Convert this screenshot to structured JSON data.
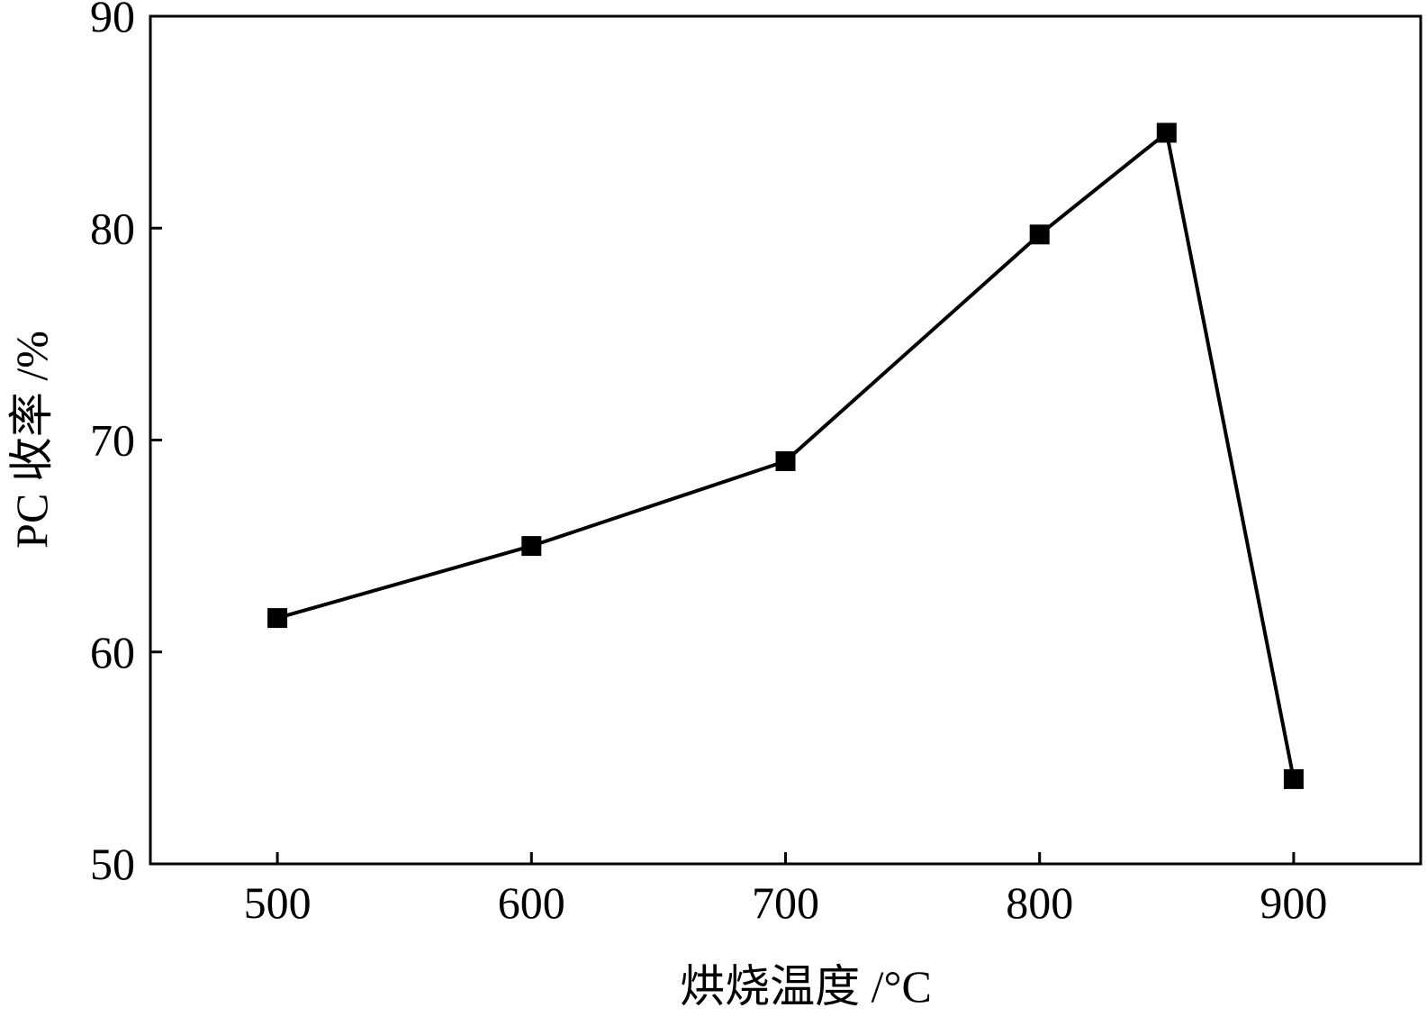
{
  "chart_data": {
    "type": "line",
    "title": "",
    "xlabel": "烘烧温度 /°C",
    "ylabel": "PC 收率 /%",
    "x": [
      500,
      600,
      700,
      800,
      850,
      900
    ],
    "series": [
      {
        "values": [
          61.6,
          65.0,
          69.0,
          79.7,
          84.5,
          54.0
        ]
      }
    ],
    "xlim": [
      450,
      950
    ],
    "ylim": [
      50,
      90
    ],
    "xticks": [
      "500",
      "600",
      "700",
      "800",
      "900"
    ],
    "yticks": [
      "50",
      "60",
      "70",
      "80",
      "90"
    ],
    "grid": false,
    "legend": "none",
    "marker": "square",
    "line_color": "#000000",
    "marker_color": "#000000"
  }
}
